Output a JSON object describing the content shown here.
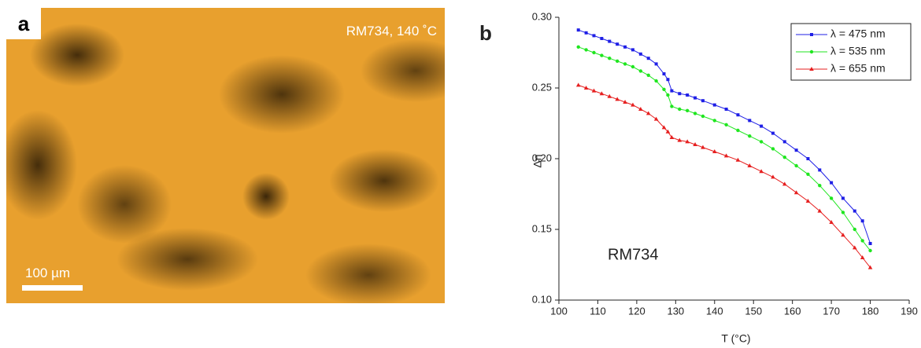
{
  "panel_a": {
    "label": "a",
    "caption": "RM734, 140 ˚C",
    "scale_bar": "100 µm"
  },
  "chart_data": {
    "type": "line",
    "panel_label": "b",
    "annotation": "RM734",
    "xlabel": "T (°C)",
    "ylabel": "Δn",
    "xlim": [
      100,
      190
    ],
    "xticks": [
      100,
      110,
      120,
      130,
      140,
      150,
      160,
      170,
      180,
      190
    ],
    "ylim": [
      0.1,
      0.3
    ],
    "yticks": [
      {
        "value": 0.1,
        "label": "0.10"
      },
      0.15,
      {
        "value": 0.2,
        "label": "0.20"
      },
      0.25,
      {
        "value": 0.3,
        "label": "0.30"
      }
    ],
    "legend": "upper right",
    "x": [
      105,
      107,
      109,
      111,
      113,
      115,
      117,
      119,
      121,
      123,
      125,
      127,
      128,
      129,
      131,
      133,
      135,
      137,
      140,
      143,
      146,
      149,
      152,
      155,
      158,
      161,
      164,
      167,
      170,
      173,
      176,
      178,
      180
    ],
    "series": [
      {
        "name": "λ = 475 nm",
        "color": "#1f1fe6",
        "marker": "square",
        "values": [
          0.291,
          0.289,
          0.287,
          0.285,
          0.283,
          0.281,
          0.279,
          0.277,
          0.274,
          0.271,
          0.267,
          0.26,
          0.256,
          0.248,
          0.246,
          0.245,
          0.243,
          0.241,
          0.238,
          0.235,
          0.231,
          0.227,
          0.223,
          0.218,
          0.212,
          0.206,
          0.2,
          0.192,
          0.183,
          0.172,
          0.163,
          0.156,
          0.14
        ]
      },
      {
        "name": "λ = 535 nm",
        "color": "#1fe61f",
        "marker": "circle",
        "values": [
          0.279,
          0.277,
          0.275,
          0.273,
          0.271,
          0.269,
          0.267,
          0.265,
          0.262,
          0.259,
          0.255,
          0.249,
          0.245,
          0.237,
          0.235,
          0.234,
          0.232,
          0.23,
          0.227,
          0.224,
          0.22,
          0.216,
          0.212,
          0.207,
          0.201,
          0.195,
          0.189,
          0.181,
          0.172,
          0.162,
          0.15,
          0.142,
          0.135
        ]
      },
      {
        "name": "λ = 655 nm",
        "color": "#e61f1f",
        "marker": "triangle",
        "values": [
          0.252,
          0.25,
          0.248,
          0.246,
          0.244,
          0.242,
          0.24,
          0.238,
          0.235,
          0.232,
          0.228,
          0.222,
          0.219,
          0.215,
          0.213,
          0.212,
          0.21,
          0.208,
          0.205,
          0.202,
          0.199,
          0.195,
          0.191,
          0.187,
          0.182,
          0.176,
          0.17,
          0.163,
          0.155,
          0.146,
          0.137,
          0.13,
          0.123
        ]
      }
    ]
  }
}
